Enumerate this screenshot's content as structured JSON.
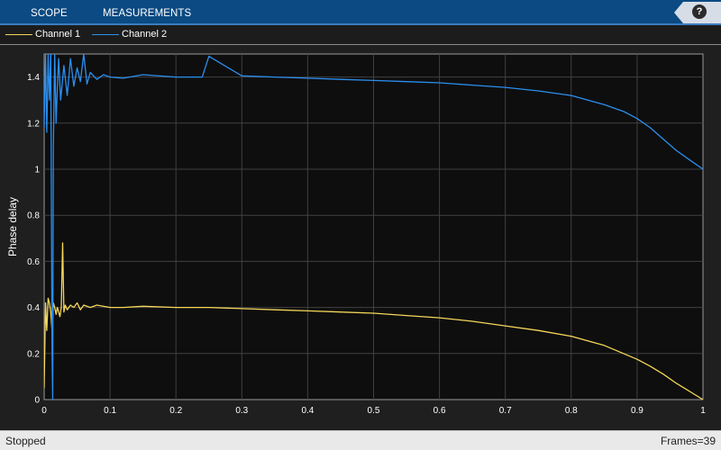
{
  "toolbar": {
    "tabs": [
      {
        "label": "SCOPE"
      },
      {
        "label": "MEASUREMENTS"
      }
    ],
    "help_label": "?"
  },
  "colors": {
    "channel1": "#f5d65a",
    "channel2": "#2b8ff0",
    "plot_background": "#0e0e0e",
    "grid": "#404040"
  },
  "legend": {
    "items": [
      {
        "name": "Channel 1",
        "color": "#f5d65a"
      },
      {
        "name": "Channel 2",
        "color": "#2b8ff0"
      }
    ]
  },
  "status": {
    "state": "Stopped",
    "frames": "Frames=39"
  },
  "chart_data": {
    "type": "line",
    "title": "",
    "xlabel": "",
    "ylabel": "Phase delay",
    "xlim": [
      0,
      1
    ],
    "ylim": [
      0,
      1.5
    ],
    "grid": true,
    "xticks": [
      0,
      0.1,
      0.2,
      0.3,
      0.4,
      0.5,
      0.6,
      0.7,
      0.8,
      0.9,
      1
    ],
    "xtick_labels": [
      "0",
      "0.1",
      "0.2",
      "0.3",
      "0.4",
      "0.5",
      "0.6",
      "0.7",
      "0.8",
      "0.9",
      "1"
    ],
    "yticks": [
      0,
      0.2,
      0.4,
      0.6,
      0.8,
      1,
      1.2,
      1.4
    ],
    "ytick_labels": [
      "0",
      "0.2",
      "0.4",
      "0.6",
      "0.8",
      "1",
      "1.2",
      "1.4"
    ],
    "series": [
      {
        "name": "Channel 1",
        "color": "#f5d65a",
        "x": [
          0,
          0.002,
          0.004,
          0.006,
          0.008,
          0.01,
          0.012,
          0.014,
          0.016,
          0.018,
          0.02,
          0.022,
          0.024,
          0.026,
          0.028,
          0.03,
          0.032,
          0.035,
          0.04,
          0.045,
          0.05,
          0.055,
          0.06,
          0.07,
          0.08,
          0.1,
          0.12,
          0.15,
          0.2,
          0.25,
          0.3,
          0.35,
          0.4,
          0.45,
          0.5,
          0.55,
          0.6,
          0.65,
          0.7,
          0.75,
          0.8,
          0.85,
          0.9,
          0.92,
          0.94,
          0.96,
          0.98,
          1
        ],
        "values": [
          0.05,
          0.42,
          0.3,
          0.44,
          0.42,
          0.38,
          0.3,
          0.42,
          0.4,
          0.37,
          0.4,
          0.38,
          0.36,
          0.4,
          0.68,
          0.38,
          0.41,
          0.39,
          0.41,
          0.4,
          0.42,
          0.39,
          0.41,
          0.4,
          0.41,
          0.4,
          0.4,
          0.405,
          0.4,
          0.4,
          0.395,
          0.39,
          0.385,
          0.38,
          0.375,
          0.365,
          0.355,
          0.34,
          0.32,
          0.3,
          0.275,
          0.235,
          0.175,
          0.145,
          0.11,
          0.07,
          0.035,
          0
        ]
      },
      {
        "name": "Channel 2",
        "color": "#2b8ff0",
        "x": [
          0,
          0.002,
          0.004,
          0.006,
          0.008,
          0.01,
          0.012,
          0.013,
          0.014,
          0.016,
          0.018,
          0.02,
          0.022,
          0.025,
          0.03,
          0.035,
          0.04,
          0.045,
          0.05,
          0.055,
          0.06,
          0.065,
          0.07,
          0.08,
          0.09,
          0.1,
          0.12,
          0.15,
          0.2,
          0.24,
          0.25,
          0.3,
          0.35,
          0.4,
          0.45,
          0.5,
          0.55,
          0.6,
          0.65,
          0.7,
          0.75,
          0.8,
          0.85,
          0.88,
          0.9,
          0.92,
          0.94,
          0.96,
          0.98,
          1
        ],
        "values": [
          1.18,
          1.5,
          1.16,
          1.5,
          1.3,
          1.5,
          0.2,
          0.0,
          1.1,
          1.5,
          1.2,
          1.35,
          1.48,
          1.3,
          1.45,
          1.32,
          1.48,
          1.36,
          1.44,
          1.38,
          1.5,
          1.37,
          1.42,
          1.39,
          1.41,
          1.4,
          1.395,
          1.41,
          1.4,
          1.4,
          1.49,
          1.405,
          1.4,
          1.395,
          1.39,
          1.385,
          1.38,
          1.375,
          1.365,
          1.355,
          1.34,
          1.32,
          1.28,
          1.25,
          1.22,
          1.18,
          1.13,
          1.08,
          1.04,
          1.0
        ]
      }
    ]
  }
}
